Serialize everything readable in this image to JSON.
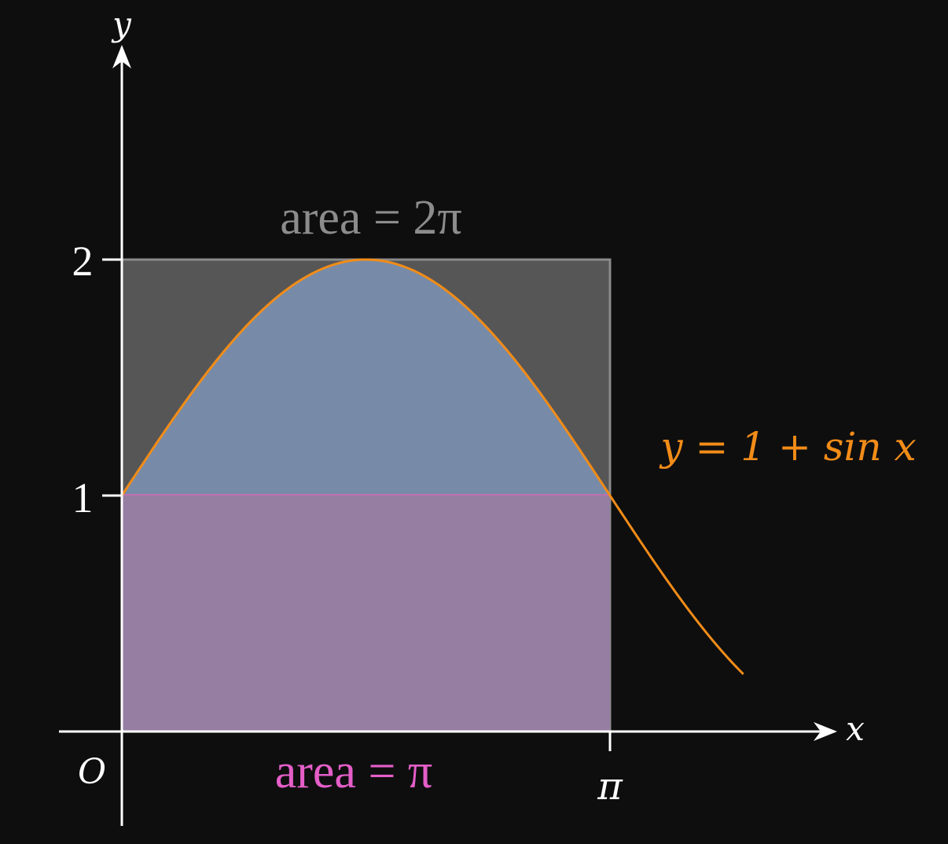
{
  "labels": {
    "y_axis": "y",
    "x_axis": "x",
    "origin": "O",
    "tick_y1": "1",
    "tick_y2": "2",
    "tick_pi": "π",
    "area_rect": "area = 2π",
    "area_under": "area = π",
    "curve_eq": "y = 1 + sin x"
  },
  "colors": {
    "background": "#0e0e0f",
    "axis": "#ffffff",
    "curve": "#f28c18",
    "rect_fill": "#565656",
    "rect_stroke": "#8a8a8a",
    "upper_fill": "#778ba8",
    "lower_fill": "#967ea2",
    "area_rect_text": "#8c8c8c",
    "area_under_text": "#e45ec7",
    "curve_label_text": "#f28c18"
  },
  "chart_data": {
    "type": "area",
    "function": "1 + sin(x)",
    "x_domain": [
      0,
      4.0
    ],
    "shaded_interval": [
      0,
      3.14159
    ],
    "rectangle": {
      "x": [
        0,
        3.14159
      ],
      "y": [
        0,
        2
      ]
    },
    "x_ticks": [
      {
        "value": 3.14159,
        "label": "π"
      }
    ],
    "y_ticks": [
      {
        "value": 1,
        "label": "1"
      },
      {
        "value": 2,
        "label": "2"
      }
    ],
    "annotations": [
      "area = 2π",
      "area = π",
      "y = 1 + sin x"
    ]
  }
}
